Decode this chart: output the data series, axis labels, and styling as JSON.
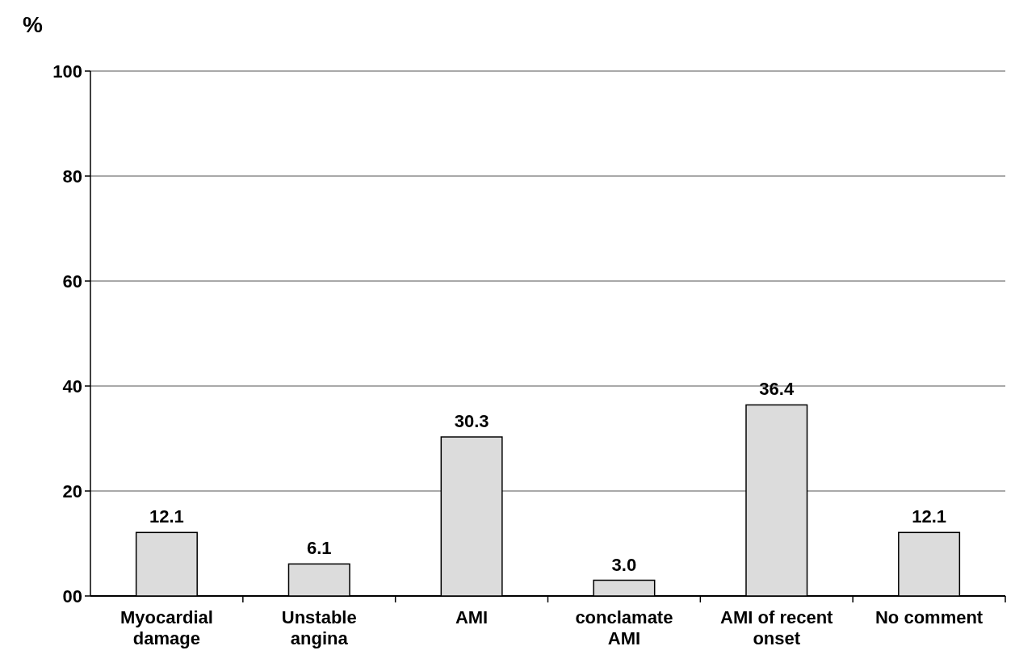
{
  "chart_data": {
    "type": "bar",
    "ylabel": "%",
    "categories": [
      "Myocardial damage",
      "Unstable angina",
      "AMI",
      "conclamate AMI",
      "AMI of recent onset",
      "No comment"
    ],
    "values": [
      12.1,
      6.1,
      30.3,
      3.0,
      36.4,
      12.1
    ],
    "color": "#dcdcdc",
    "ylim": [
      0,
      100
    ],
    "yticks": [
      {
        "value": 0,
        "label": "00"
      },
      20,
      40,
      60,
      80,
      100
    ],
    "grid": "y",
    "value_labels": [
      "12.1",
      "6.1",
      "30.3",
      "3.0",
      "36.4",
      "12.1"
    ]
  }
}
